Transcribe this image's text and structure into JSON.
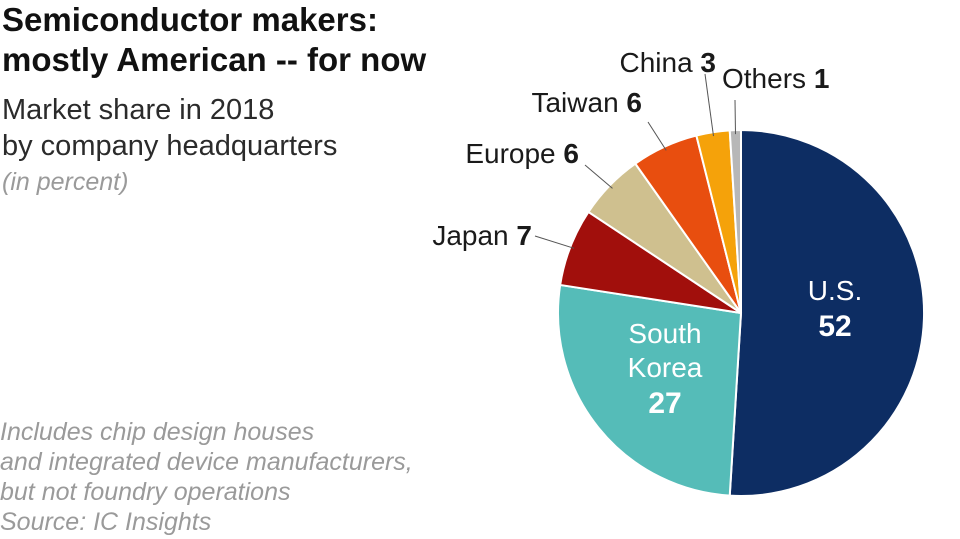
{
  "title": [
    "Semiconductor makers:",
    "mostly American -- for now"
  ],
  "subtitle": [
    "Market share in 2018",
    "by company headquarters"
  ],
  "units": "(in percent)",
  "notes": [
    "Includes chip design houses",
    "and integrated device manufacturers,",
    "but not foundry operations",
    "Source: IC Insights"
  ],
  "chart_data": {
    "type": "pie",
    "title": "Semiconductor makers: mostly American -- for now",
    "unit": "percent",
    "slices": [
      {
        "label": "U.S.",
        "value": 52,
        "color": "#0d2d63",
        "label_color": "#ffffff"
      },
      {
        "label": "South Korea",
        "value": 27,
        "color": "#55bcb8",
        "label_color": "#ffffff"
      },
      {
        "label": "Japan",
        "value": 7,
        "color": "#a10f0c",
        "label_color": "#1a1a1a"
      },
      {
        "label": "Europe",
        "value": 6,
        "color": "#cfc08f",
        "label_color": "#1a1a1a"
      },
      {
        "label": "Taiwan",
        "value": 6,
        "color": "#e84e0f",
        "label_color": "#1a1a1a"
      },
      {
        "label": "China",
        "value": 3,
        "color": "#f5a20a",
        "label_color": "#1a1a1a"
      },
      {
        "label": "Others",
        "value": 1,
        "color": "#b7b7b7",
        "label_color": "#1a1a1a"
      }
    ]
  }
}
